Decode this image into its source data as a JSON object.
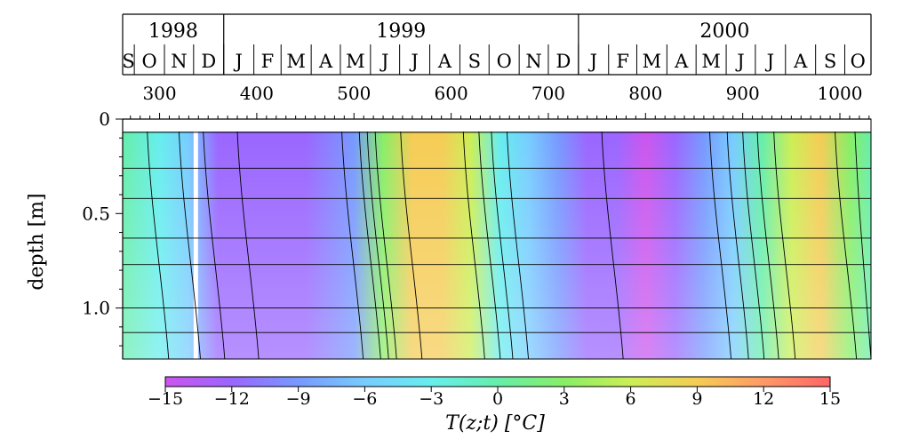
{
  "chart_data": {
    "type": "heatmap",
    "title": "",
    "xlabel": "",
    "ylabel": "depth [m]",
    "xlim": [
      262,
      1032
    ],
    "ylim": [
      0,
      1.27
    ],
    "y_inverted": true,
    "x_ticks": [
      300,
      400,
      500,
      600,
      700,
      800,
      900,
      1000
    ],
    "x_tick_labels": [
      "300",
      "400",
      "500",
      "600",
      "700",
      "800",
      "900",
      "1000"
    ],
    "y_ticks": [
      0,
      0.5,
      1.0
    ],
    "y_tick_labels": [
      "0",
      "0.5",
      "1.0"
    ],
    "measurement_depths": [
      0.07,
      0.26,
      0.42,
      0.63,
      0.77,
      1.0,
      1.13
    ],
    "years": [
      {
        "label": "1998",
        "start": 262,
        "end": 366
      },
      {
        "label": "1999",
        "start": 366,
        "end": 731
      },
      {
        "label": "2000",
        "start": 731,
        "end": 1032
      }
    ],
    "months": [
      {
        "label": "S",
        "start": 262,
        "end": 274
      },
      {
        "label": "O",
        "start": 274,
        "end": 305
      },
      {
        "label": "N",
        "start": 305,
        "end": 335
      },
      {
        "label": "D",
        "start": 335,
        "end": 366
      },
      {
        "label": "J",
        "start": 366,
        "end": 397
      },
      {
        "label": "F",
        "start": 397,
        "end": 425
      },
      {
        "label": "M",
        "start": 425,
        "end": 456
      },
      {
        "label": "A",
        "start": 456,
        "end": 486
      },
      {
        "label": "M",
        "start": 486,
        "end": 517
      },
      {
        "label": "J",
        "start": 517,
        "end": 547
      },
      {
        "label": "J",
        "start": 547,
        "end": 578
      },
      {
        "label": "A",
        "start": 578,
        "end": 609
      },
      {
        "label": "S",
        "start": 609,
        "end": 639
      },
      {
        "label": "O",
        "start": 639,
        "end": 670
      },
      {
        "label": "N",
        "start": 670,
        "end": 700
      },
      {
        "label": "D",
        "start": 700,
        "end": 731
      },
      {
        "label": "J",
        "start": 731,
        "end": 762
      },
      {
        "label": "F",
        "start": 762,
        "end": 791
      },
      {
        "label": "M",
        "start": 791,
        "end": 822
      },
      {
        "label": "A",
        "start": 822,
        "end": 852
      },
      {
        "label": "M",
        "start": 852,
        "end": 883
      },
      {
        "label": "J",
        "start": 883,
        "end": 913
      },
      {
        "label": "J",
        "start": 913,
        "end": 944
      },
      {
        "label": "A",
        "start": 944,
        "end": 975
      },
      {
        "label": "S",
        "start": 975,
        "end": 1005
      },
      {
        "label": "O",
        "start": 1005,
        "end": 1032
      }
    ],
    "temperature_profile": {
      "days": [
        262,
        300,
        330,
        360,
        400,
        450,
        500,
        530,
        560,
        590,
        620,
        650,
        680,
        710,
        740,
        770,
        800,
        830,
        860,
        890,
        920,
        950,
        980,
        1010,
        1032
      ],
      "surface_degC": [
        -1,
        -4,
        -7,
        -11,
        -13,
        -12,
        -8,
        3,
        8,
        9,
        5,
        -2,
        -6,
        -9,
        -11,
        -13,
        -15,
        -12,
        -10,
        -5,
        1,
        6,
        8,
        4,
        0
      ],
      "bottom_degC": [
        -1,
        -1,
        -2,
        -3,
        -5,
        -6,
        -6,
        -4,
        -1,
        3,
        4,
        2,
        -1,
        -3,
        -5,
        -7,
        -8,
        -9,
        -8,
        -6,
        -3,
        0,
        3,
        3,
        2
      ]
    },
    "colorbar": {
      "min": -15,
      "max": 15,
      "ticks": [
        -15,
        -12,
        -9,
        -6,
        -3,
        0,
        3,
        6,
        9,
        12,
        15
      ],
      "tick_labels": [
        "−15",
        "−12",
        "−9",
        "−6",
        "−3",
        "0",
        "3",
        "6",
        "9",
        "12",
        "15"
      ],
      "label": "T(z;t) [°C]",
      "colors": [
        "#cc55ee",
        "#9a66ff",
        "#7799ff",
        "#77ccff",
        "#66eeee",
        "#66eeaa",
        "#88ee66",
        "#ccee55",
        "#f5cc55",
        "#ff9966",
        "#ff6666"
      ]
    }
  }
}
